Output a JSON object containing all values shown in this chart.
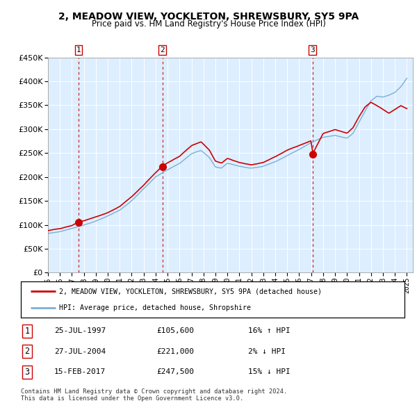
{
  "title1": "2, MEADOW VIEW, YOCKLETON, SHREWSBURY, SY5 9PA",
  "title2": "Price paid vs. HM Land Registry's House Price Index (HPI)",
  "legend_line1": "2, MEADOW VIEW, YOCKLETON, SHREWSBURY, SY5 9PA (detached house)",
  "legend_line2": "HPI: Average price, detached house, Shropshire",
  "sale_dates_decimal": [
    1997.558,
    2004.558,
    2017.125
  ],
  "sale_prices": [
    105600,
    221000,
    247500
  ],
  "sale_labels": [
    "1",
    "2",
    "3"
  ],
  "table_rows": [
    {
      "num": "1",
      "date": "25-JUL-1997",
      "price": "£105,600",
      "hpi": "16% ↑ HPI"
    },
    {
      "num": "2",
      "date": "27-JUL-2004",
      "price": "£221,000",
      "hpi": "2% ↓ HPI"
    },
    {
      "num": "3",
      "date": "15-FEB-2017",
      "price": "£247,500",
      "hpi": "15% ↓ HPI"
    }
  ],
  "footnote1": "Contains HM Land Registry data © Crown copyright and database right 2024.",
  "footnote2": "This data is licensed under the Open Government Licence v3.0.",
  "hpi_color": "#7bafd4",
  "price_color": "#cc0000",
  "sale_marker_color": "#cc0000",
  "dashed_line_color": "#cc0000",
  "bg_color": "#ddeeff",
  "ylim": [
    0,
    450000
  ],
  "yticks": [
    0,
    50000,
    100000,
    150000,
    200000,
    250000,
    300000,
    350000,
    400000,
    450000
  ],
  "x_start_year": 1995,
  "x_end_year": 2025
}
